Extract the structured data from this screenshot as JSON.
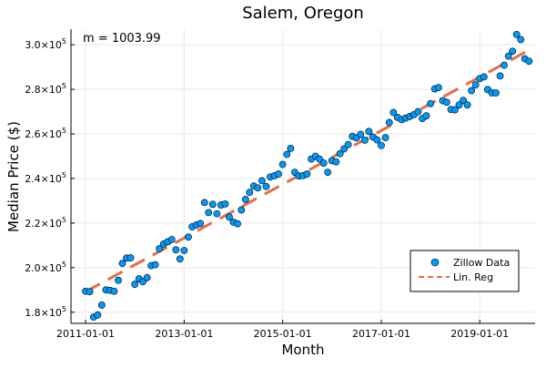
{
  "chart_data": {
    "type": "scatter",
    "title": "Salem, Oregon",
    "xlabel": "Month",
    "ylabel": "Median Price ($)",
    "annotation": "m = 1003.99",
    "x_ticks": [
      "2011-01-01",
      "2013-01-01",
      "2015-01-01",
      "2017-01-01",
      "2019-01-01"
    ],
    "y_ticks": [
      {
        "value": 180000,
        "mantissa": "1.8",
        "exp": "5"
      },
      {
        "value": 200000,
        "mantissa": "2.0",
        "exp": "5"
      },
      {
        "value": 220000,
        "mantissa": "2.2",
        "exp": "5"
      },
      {
        "value": 240000,
        "mantissa": "2.4",
        "exp": "5"
      },
      {
        "value": 260000,
        "mantissa": "2.6",
        "exp": "5"
      },
      {
        "value": 280000,
        "mantissa": "2.8",
        "exp": "5"
      },
      {
        "value": 300000,
        "mantissa": "3.0",
        "exp": "5"
      }
    ],
    "tick_base": "×10",
    "xlim": [
      "2010-09-15",
      "2020-02-15"
    ],
    "ylim": [
      175000,
      307000
    ],
    "grid": true,
    "legend_position": "bottom-right",
    "series": [
      {
        "name": "Zillow Data",
        "kind": "scatter",
        "color": "#009AFA",
        "points": [
          [
            "2011-01-01",
            189400
          ],
          [
            "2011-02-01",
            189200
          ],
          [
            "2011-03-01",
            177800
          ],
          [
            "2011-04-01",
            178800
          ],
          [
            "2011-05-01",
            183200
          ],
          [
            "2011-06-01",
            190000
          ],
          [
            "2011-07-01",
            189800
          ],
          [
            "2011-08-01",
            189400
          ],
          [
            "2011-09-01",
            194300
          ],
          [
            "2011-10-01",
            201900
          ],
          [
            "2011-11-01",
            204300
          ],
          [
            "2011-12-01",
            204400
          ],
          [
            "2012-01-01",
            192500
          ],
          [
            "2012-02-01",
            195000
          ],
          [
            "2012-03-01",
            193700
          ],
          [
            "2012-04-01",
            195500
          ],
          [
            "2012-05-01",
            200900
          ],
          [
            "2012-06-01",
            201300
          ],
          [
            "2012-07-01",
            208500
          ],
          [
            "2012-08-01",
            210600
          ],
          [
            "2012-09-01",
            211600
          ],
          [
            "2012-10-01",
            212600
          ],
          [
            "2012-11-01",
            208000
          ],
          [
            "2012-12-01",
            203900
          ],
          [
            "2013-01-01",
            207700
          ],
          [
            "2013-02-01",
            213700
          ],
          [
            "2013-03-01",
            218300
          ],
          [
            "2013-04-01",
            219200
          ],
          [
            "2013-05-01",
            219800
          ],
          [
            "2013-06-01",
            229200
          ],
          [
            "2013-07-01",
            224700
          ],
          [
            "2013-08-01",
            228400
          ],
          [
            "2013-09-01",
            224200
          ],
          [
            "2013-10-01",
            228100
          ],
          [
            "2013-11-01",
            228600
          ],
          [
            "2013-12-01",
            222700
          ],
          [
            "2014-01-01",
            220400
          ],
          [
            "2014-02-01",
            219700
          ],
          [
            "2014-03-01",
            225900
          ],
          [
            "2014-04-01",
            230600
          ],
          [
            "2014-05-01",
            233800
          ],
          [
            "2014-06-01",
            236600
          ],
          [
            "2014-07-01",
            235800
          ],
          [
            "2014-08-01",
            239000
          ],
          [
            "2014-09-01",
            236400
          ],
          [
            "2014-10-01",
            240700
          ],
          [
            "2014-11-01",
            241200
          ],
          [
            "2014-12-01",
            242000
          ],
          [
            "2015-01-01",
            246300
          ],
          [
            "2015-02-01",
            250800
          ],
          [
            "2015-03-01",
            253500
          ],
          [
            "2015-04-01",
            242800
          ],
          [
            "2015-05-01",
            241100
          ],
          [
            "2015-06-01",
            241300
          ],
          [
            "2015-07-01",
            242000
          ],
          [
            "2015-08-01",
            248700
          ],
          [
            "2015-09-01",
            250000
          ],
          [
            "2015-10-01",
            248700
          ],
          [
            "2015-11-01",
            246900
          ],
          [
            "2015-12-01",
            242800
          ],
          [
            "2016-01-01",
            248000
          ],
          [
            "2016-02-01",
            247500
          ],
          [
            "2016-03-01",
            251100
          ],
          [
            "2016-04-01",
            253300
          ],
          [
            "2016-05-01",
            255200
          ],
          [
            "2016-06-01",
            258900
          ],
          [
            "2016-07-01",
            258200
          ],
          [
            "2016-08-01",
            259800
          ],
          [
            "2016-09-01",
            257200
          ],
          [
            "2016-10-01",
            261100
          ],
          [
            "2016-11-01",
            258600
          ],
          [
            "2016-12-01",
            257300
          ],
          [
            "2017-01-01",
            254800
          ],
          [
            "2017-02-01",
            258300
          ],
          [
            "2017-03-01",
            265100
          ],
          [
            "2017-04-01",
            269600
          ],
          [
            "2017-05-01",
            267400
          ],
          [
            "2017-06-01",
            266400
          ],
          [
            "2017-07-01",
            267100
          ],
          [
            "2017-08-01",
            267800
          ],
          [
            "2017-09-01",
            268700
          ],
          [
            "2017-10-01",
            270000
          ],
          [
            "2017-11-01",
            266900
          ],
          [
            "2017-12-01",
            268100
          ],
          [
            "2018-01-01",
            273600
          ],
          [
            "2018-02-01",
            280200
          ],
          [
            "2018-03-01",
            280800
          ],
          [
            "2018-04-01",
            274900
          ],
          [
            "2018-05-01",
            274200
          ],
          [
            "2018-06-01",
            271000
          ],
          [
            "2018-07-01",
            270800
          ],
          [
            "2018-08-01",
            273000
          ],
          [
            "2018-09-01",
            275000
          ],
          [
            "2018-10-01",
            273000
          ],
          [
            "2018-11-01",
            279400
          ],
          [
            "2018-12-01",
            282000
          ],
          [
            "2019-01-01",
            284800
          ],
          [
            "2019-02-01",
            285600
          ],
          [
            "2019-03-01",
            279900
          ],
          [
            "2019-04-01",
            278400
          ],
          [
            "2019-05-01",
            278400
          ],
          [
            "2019-06-01",
            286000
          ],
          [
            "2019-07-01",
            290800
          ],
          [
            "2019-08-01",
            294900
          ],
          [
            "2019-09-01",
            297100
          ],
          [
            "2019-10-01",
            304600
          ],
          [
            "2019-11-01",
            302300
          ],
          [
            "2019-12-01",
            293700
          ],
          [
            "2020-01-01",
            292600
          ]
        ]
      },
      {
        "name": "Lin. Reg",
        "kind": "line",
        "style": "dashed",
        "color": "#E26F46",
        "points": [
          [
            "2011-01-01",
            189200
          ],
          [
            "2020-01-01",
            297600
          ]
        ]
      }
    ]
  }
}
